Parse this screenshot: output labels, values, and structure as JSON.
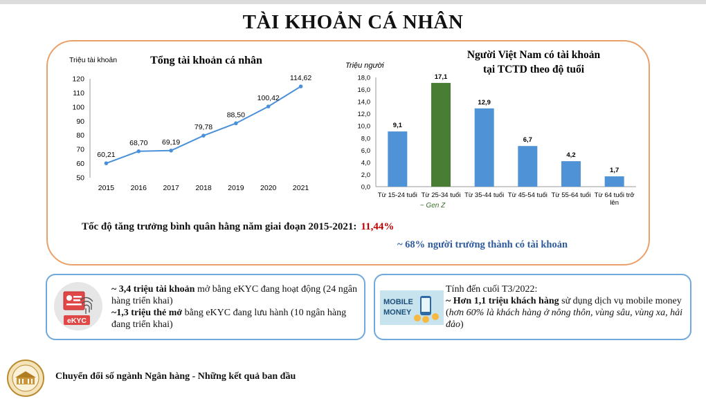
{
  "page": {
    "title": "TÀI KHOẢN CÁ NHÂN",
    "growth_label": "Tốc độ tăng trưởng bình quân hằng năm giai đoạn 2015-2021:",
    "growth_value": "11,44%",
    "adults_note": "~ 68% người trưởng thành có tài khoản",
    "footer": "Chuyển đổi số ngành Ngân hàng - Những kết quả ban đầu"
  },
  "colors": {
    "panel_border": "#e9a06a",
    "card_border": "#6fa8dc",
    "line": "#4a90d9",
    "bar": "#4f92d6",
    "bar_highlight": "#4a7d34",
    "growth_value": "#c00000",
    "adults_note": "#2e5a9c"
  },
  "chart_data": [
    {
      "type": "line",
      "title": "Tổng tài khoản cá nhân",
      "ylabel": "Triệu tài khoản",
      "x": [
        "2015",
        "2016",
        "2017",
        "2018",
        "2019",
        "2020",
        "2021"
      ],
      "values": [
        60.21,
        68.7,
        69.19,
        79.78,
        88.5,
        100.42,
        114.62
      ],
      "data_labels": [
        "60,21",
        "68,70",
        "69,19",
        "79,78",
        "88,50",
        "100,42",
        "114,62"
      ],
      "ylim": [
        50,
        120
      ],
      "yticks": [
        "50",
        "60",
        "70",
        "80",
        "90",
        "100",
        "110",
        "120"
      ],
      "grid": false
    },
    {
      "type": "bar",
      "title_lines": [
        "Người Việt Nam có tài khoản",
        "tại TCTD theo độ tuổi"
      ],
      "ylabel": "Triệu người",
      "categories": [
        [
          "Từ 15-24 tuổi"
        ],
        [
          "Từ 25-34 tuổi"
        ],
        [
          "Từ 35-44 tuổi"
        ],
        [
          "Từ 45-54 tuổi"
        ],
        [
          "Từ 55-64 tuổi"
        ],
        [
          "Từ 64 tuổi trở",
          "lên"
        ]
      ],
      "values": [
        9.1,
        17.1,
        12.9,
        6.7,
        4.2,
        1.7
      ],
      "data_labels": [
        "9,1",
        "17,1",
        "12,9",
        "6,7",
        "4,2",
        "1,7"
      ],
      "highlight_index": 1,
      "annotation": "~ Gen Z",
      "ylim": [
        0,
        18
      ],
      "yticks": [
        "0,0",
        "2,0",
        "4,0",
        "6,0",
        "8,0",
        "10,0",
        "12,0",
        "14,0",
        "16,0",
        "18,0"
      ],
      "grid": false
    }
  ],
  "ekyc_card": {
    "icon": "ekyc-icon",
    "icon_label": "eKYC",
    "line1_bold": "~ 3,4 triệu tài khoản",
    "line1_rest": " mở bằng eKYC đang hoạt động (24 ngân hàng triển khai)",
    "line2_bold": "~1,3 triệu thẻ mở",
    "line2_rest": " bằng eKYC đang lưu hành (10 ngân hàng đang triển khai)"
  },
  "mobile_money_card": {
    "icon": "mobile-money-icon",
    "icon_label_1": "MOBILE",
    "icon_label_2": "MONEY",
    "intro": "Tính đến cuối T3/2022:",
    "bold": "~ Hơn 1,1 triệu khách hàng",
    "rest": " sử dụng dịch vụ mobile money (",
    "italic": "hơn 60% là khách hàng ở nông thôn, vùng sâu, vùng xa, hải đảo",
    "close": ")"
  }
}
